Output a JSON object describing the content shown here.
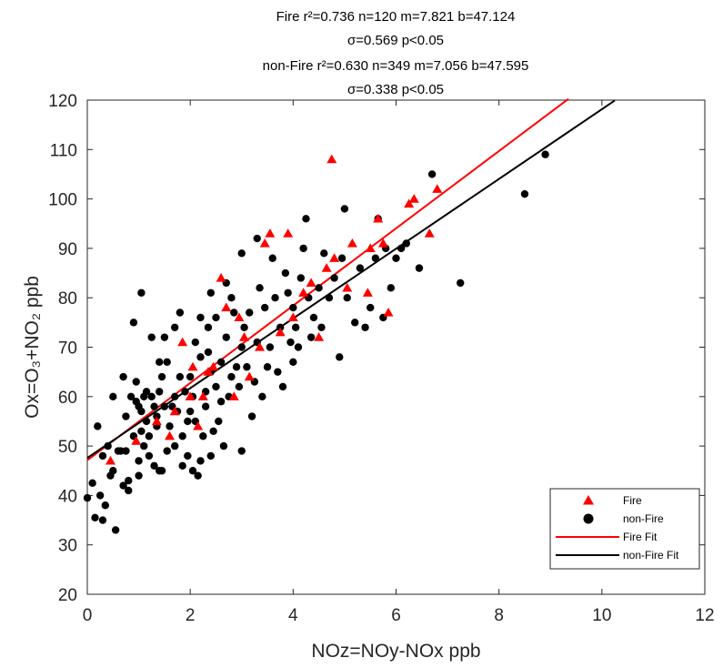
{
  "chart_data": {
    "type": "scatter",
    "title_lines": [
      "Fire r²=0.736 n=120  m=7.821  b=47.124",
      "σ=0.569 p<0.05",
      "non-Fire r²=0.630 n=349 m=7.056  b=47.595",
      "σ=0.338 p<0.05"
    ],
    "xlabel": "NOz=NOy-NOx  ppb",
    "ylabel": "Ox=O₃+NO₂ ppb",
    "xlim": [
      0,
      12
    ],
    "ylim": [
      20,
      120
    ],
    "xticks": [
      0,
      2,
      4,
      6,
      8,
      10,
      12
    ],
    "yticks": [
      20,
      30,
      40,
      50,
      60,
      70,
      80,
      90,
      100,
      110,
      120
    ],
    "grid": false,
    "legend_position": "bottom-right",
    "legend": [
      {
        "label": "Fire",
        "marker": "triangle",
        "color": "#ff0000"
      },
      {
        "label": "non-Fire",
        "marker": "circle",
        "color": "#000000"
      },
      {
        "label": "Fire Fit",
        "marker": "line",
        "color": "#ff0000"
      },
      {
        "label": "non-Fire Fit",
        "marker": "line",
        "color": "#000000"
      }
    ],
    "series": [
      {
        "name": "non-Fire",
        "marker": "circle",
        "color": "#000000",
        "points": [
          [
            0.0,
            39.5
          ],
          [
            0.1,
            42.5
          ],
          [
            0.15,
            35.5
          ],
          [
            0.2,
            54
          ],
          [
            0.25,
            40
          ],
          [
            0.3,
            35
          ],
          [
            0.3,
            48
          ],
          [
            0.35,
            38
          ],
          [
            0.4,
            50
          ],
          [
            0.45,
            44
          ],
          [
            0.5,
            45
          ],
          [
            0.5,
            60
          ],
          [
            0.55,
            33
          ],
          [
            0.6,
            49
          ],
          [
            0.65,
            49
          ],
          [
            0.7,
            42
          ],
          [
            0.7,
            64
          ],
          [
            0.75,
            49
          ],
          [
            0.75,
            56
          ],
          [
            0.8,
            43
          ],
          [
            0.8,
            41
          ],
          [
            0.85,
            60
          ],
          [
            0.9,
            75
          ],
          [
            0.9,
            52
          ],
          [
            0.95,
            63
          ],
          [
            0.95,
            59
          ],
          [
            1.0,
            58
          ],
          [
            1.0,
            47
          ],
          [
            1.0,
            44
          ],
          [
            1.05,
            81
          ],
          [
            1.05,
            53
          ],
          [
            1.05,
            57
          ],
          [
            1.1,
            60
          ],
          [
            1.1,
            50
          ],
          [
            1.15,
            55
          ],
          [
            1.15,
            61
          ],
          [
            1.2,
            48
          ],
          [
            1.2,
            52
          ],
          [
            1.25,
            60
          ],
          [
            1.25,
            72
          ],
          [
            1.3,
            46
          ],
          [
            1.3,
            58
          ],
          [
            1.35,
            54
          ],
          [
            1.35,
            56
          ],
          [
            1.4,
            67
          ],
          [
            1.4,
            61
          ],
          [
            1.4,
            45
          ],
          [
            1.45,
            64
          ],
          [
            1.45,
            45
          ],
          [
            1.5,
            72
          ],
          [
            1.5,
            58
          ],
          [
            1.55,
            49
          ],
          [
            1.55,
            67
          ],
          [
            1.6,
            54
          ],
          [
            1.65,
            58
          ],
          [
            1.7,
            74
          ],
          [
            1.7,
            60
          ],
          [
            1.7,
            50
          ],
          [
            1.75,
            57
          ],
          [
            1.8,
            77
          ],
          [
            1.8,
            64
          ],
          [
            1.85,
            52
          ],
          [
            1.85,
            46
          ],
          [
            1.9,
            61
          ],
          [
            1.95,
            55
          ],
          [
            1.95,
            48
          ],
          [
            2.0,
            64
          ],
          [
            2.0,
            57
          ],
          [
            2.05,
            60
          ],
          [
            2.05,
            45
          ],
          [
            2.1,
            71
          ],
          [
            2.1,
            55
          ],
          [
            2.15,
            44
          ],
          [
            2.2,
            76
          ],
          [
            2.2,
            68
          ],
          [
            2.2,
            47
          ],
          [
            2.25,
            52
          ],
          [
            2.3,
            61
          ],
          [
            2.3,
            58
          ],
          [
            2.35,
            74
          ],
          [
            2.35,
            69
          ],
          [
            2.4,
            81
          ],
          [
            2.4,
            65
          ],
          [
            2.4,
            48
          ],
          [
            2.45,
            53
          ],
          [
            2.5,
            76
          ],
          [
            2.5,
            62
          ],
          [
            2.55,
            55
          ],
          [
            2.6,
            67
          ],
          [
            2.6,
            59
          ],
          [
            2.65,
            50
          ],
          [
            2.7,
            83
          ],
          [
            2.7,
            72
          ],
          [
            2.75,
            60
          ],
          [
            2.8,
            64
          ],
          [
            2.8,
            80
          ],
          [
            2.85,
            77
          ],
          [
            2.9,
            66
          ],
          [
            2.95,
            62
          ],
          [
            3.0,
            89
          ],
          [
            3.0,
            70
          ],
          [
            3.0,
            49
          ],
          [
            3.05,
            74
          ],
          [
            3.1,
            66
          ],
          [
            3.15,
            77
          ],
          [
            3.2,
            56
          ],
          [
            3.25,
            63
          ],
          [
            3.3,
            92
          ],
          [
            3.3,
            71
          ],
          [
            3.35,
            82
          ],
          [
            3.4,
            60
          ],
          [
            3.45,
            78
          ],
          [
            3.5,
            66
          ],
          [
            3.55,
            70
          ],
          [
            3.6,
            88
          ],
          [
            3.65,
            80
          ],
          [
            3.7,
            65
          ],
          [
            3.75,
            74
          ],
          [
            3.8,
            62
          ],
          [
            3.85,
            85
          ],
          [
            3.9,
            81
          ],
          [
            3.95,
            71
          ],
          [
            4.0,
            67
          ],
          [
            4.0,
            78
          ],
          [
            4.05,
            74
          ],
          [
            4.1,
            70
          ],
          [
            4.15,
            84
          ],
          [
            4.2,
            90
          ],
          [
            4.25,
            96
          ],
          [
            4.3,
            80
          ],
          [
            4.35,
            72
          ],
          [
            4.4,
            76
          ],
          [
            4.5,
            82
          ],
          [
            4.55,
            74
          ],
          [
            4.6,
            89
          ],
          [
            4.7,
            80
          ],
          [
            4.8,
            84
          ],
          [
            4.9,
            68
          ],
          [
            4.95,
            88
          ],
          [
            5.0,
            98
          ],
          [
            5.05,
            80
          ],
          [
            5.2,
            75
          ],
          [
            5.3,
            86
          ],
          [
            5.4,
            74
          ],
          [
            5.5,
            78
          ],
          [
            5.6,
            88
          ],
          [
            5.65,
            96
          ],
          [
            5.75,
            76
          ],
          [
            5.8,
            90
          ],
          [
            5.9,
            82
          ],
          [
            6.0,
            88
          ],
          [
            6.1,
            90
          ],
          [
            6.2,
            91
          ],
          [
            6.45,
            86
          ],
          [
            6.7,
            105
          ],
          [
            7.25,
            83
          ],
          [
            8.5,
            101
          ],
          [
            8.9,
            109
          ]
        ]
      },
      {
        "name": "Fire",
        "marker": "triangle",
        "color": "#ff0000",
        "points": [
          [
            0.45,
            47
          ],
          [
            0.95,
            51
          ],
          [
            1.35,
            55
          ],
          [
            1.6,
            52
          ],
          [
            1.7,
            57
          ],
          [
            1.85,
            71
          ],
          [
            2.0,
            60
          ],
          [
            2.05,
            66
          ],
          [
            2.15,
            54
          ],
          [
            2.25,
            60
          ],
          [
            2.35,
            65
          ],
          [
            2.45,
            66
          ],
          [
            2.6,
            84
          ],
          [
            2.7,
            78
          ],
          [
            2.85,
            60
          ],
          [
            2.95,
            76
          ],
          [
            3.05,
            72
          ],
          [
            3.15,
            64
          ],
          [
            3.35,
            70
          ],
          [
            3.45,
            91
          ],
          [
            3.55,
            93
          ],
          [
            3.75,
            73
          ],
          [
            3.9,
            93
          ],
          [
            4.0,
            76
          ],
          [
            4.2,
            81
          ],
          [
            4.35,
            83
          ],
          [
            4.5,
            72
          ],
          [
            4.65,
            86
          ],
          [
            4.75,
            108
          ],
          [
            4.8,
            88
          ],
          [
            5.05,
            82
          ],
          [
            5.15,
            91
          ],
          [
            5.45,
            81
          ],
          [
            5.5,
            90
          ],
          [
            5.65,
            96
          ],
          [
            5.75,
            91
          ],
          [
            5.85,
            77
          ],
          [
            6.25,
            99
          ],
          [
            6.35,
            100
          ],
          [
            6.65,
            93
          ],
          [
            6.8,
            102
          ]
        ]
      }
    ],
    "fits": [
      {
        "name": "Fire Fit",
        "color": "#ff0000",
        "slope": 7.821,
        "intercept": 47.124,
        "x_range": [
          0,
          9.35
        ]
      },
      {
        "name": "non-Fire Fit",
        "color": "#000000",
        "slope": 7.056,
        "intercept": 47.595,
        "x_range": [
          0,
          10.25
        ]
      }
    ]
  }
}
